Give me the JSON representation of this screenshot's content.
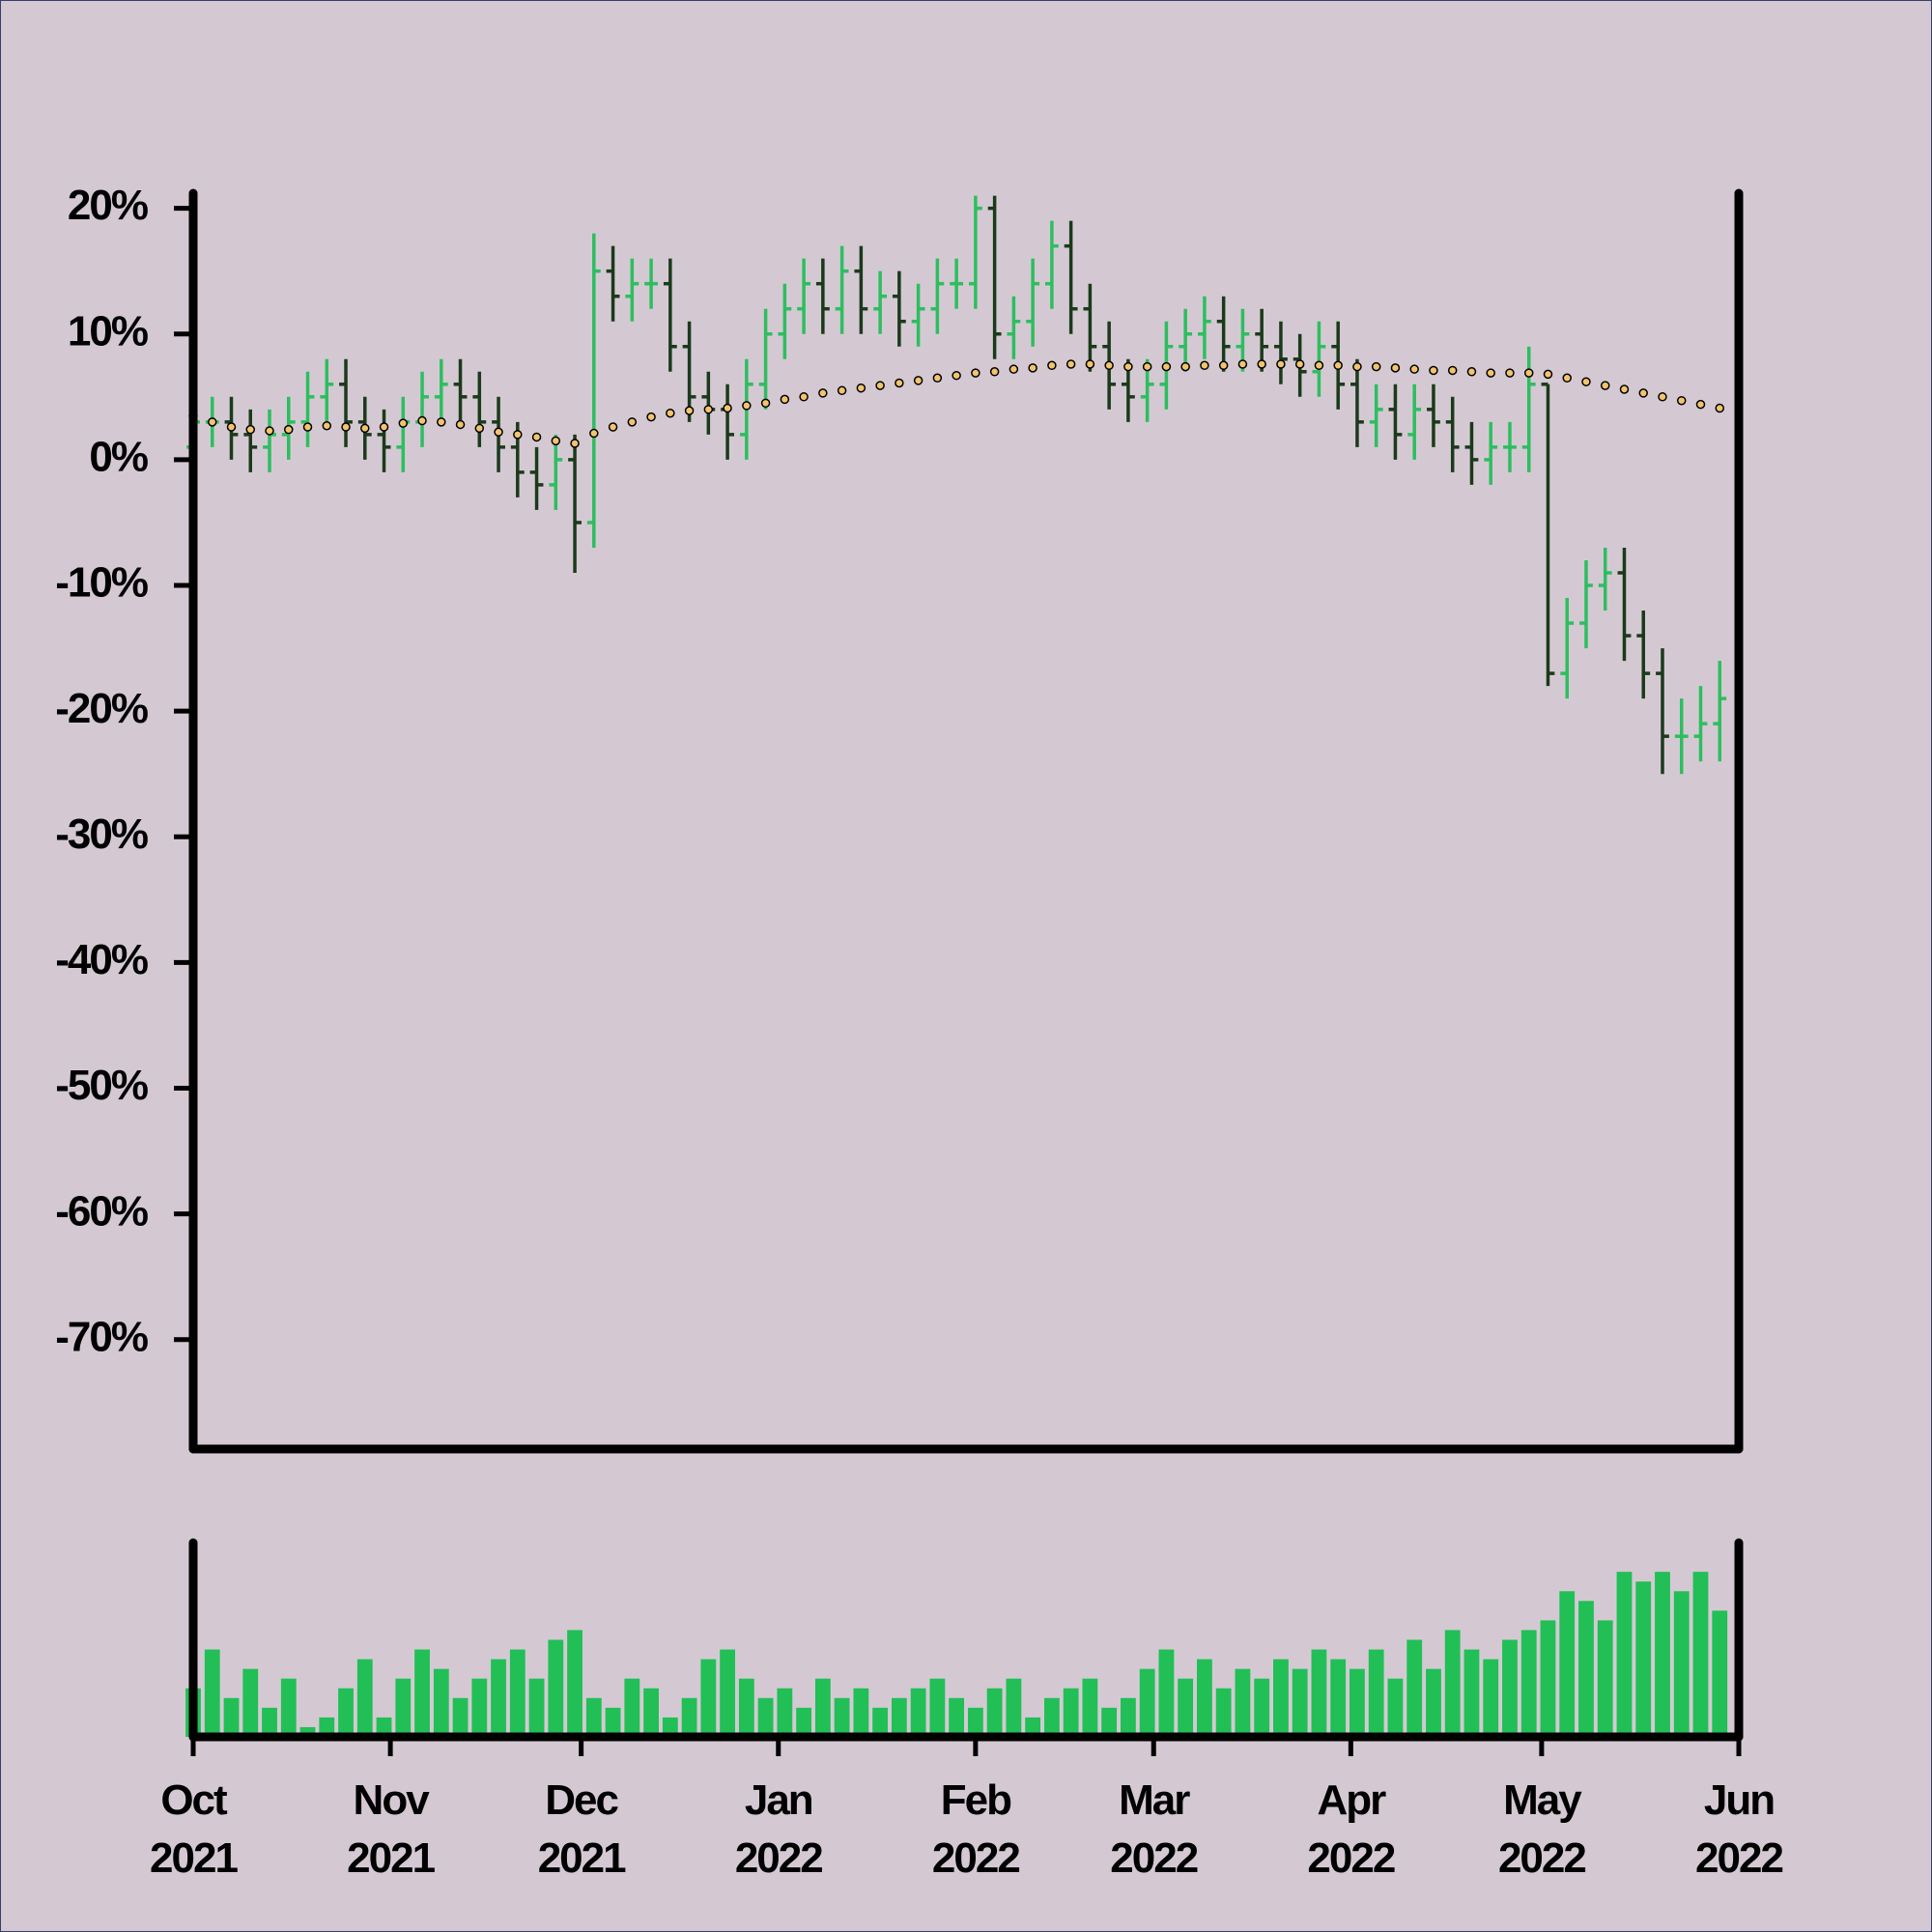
{
  "chart_data": {
    "type": "ohlc",
    "x": [
      0,
      3,
      6,
      9,
      12,
      15,
      18,
      21,
      24,
      27,
      30,
      33,
      36,
      39,
      42,
      45,
      48,
      51,
      54,
      57,
      60,
      63,
      66,
      69,
      72,
      75,
      78,
      81,
      84,
      87,
      90,
      93,
      96,
      99,
      102,
      105,
      108,
      111,
      114,
      117,
      120,
      123,
      126,
      129,
      132,
      135,
      138,
      141,
      144,
      147,
      150,
      153,
      156,
      159,
      162,
      165,
      168,
      171,
      174,
      177,
      180,
      183,
      186,
      189,
      192,
      195,
      198,
      201,
      204,
      207,
      210,
      213,
      216,
      219,
      222,
      225,
      228,
      231,
      234,
      237,
      240
    ],
    "open": [
      1,
      3,
      3,
      2,
      1,
      2,
      3,
      5,
      6,
      3,
      2,
      1,
      3,
      5,
      6,
      5,
      3,
      1,
      -1,
      -2,
      0,
      -5,
      15,
      13,
      14,
      14,
      9,
      5,
      4,
      2,
      6,
      10,
      12,
      14,
      12,
      15,
      12,
      13,
      11,
      12,
      14,
      14,
      20,
      10,
      11,
      14,
      17,
      12,
      9,
      6,
      5,
      6,
      9,
      10,
      11,
      9,
      10,
      9,
      8,
      7,
      9,
      6,
      3,
      4,
      2,
      4,
      3,
      1,
      0,
      1,
      1,
      6,
      -17,
      -13,
      -10,
      -9,
      -14,
      -17,
      -22,
      -22,
      -21
    ],
    "high": [
      5,
      5,
      5,
      4,
      4,
      5,
      7,
      8,
      8,
      5,
      4,
      5,
      7,
      8,
      8,
      7,
      5,
      3,
      1,
      2,
      2,
      18,
      17,
      16,
      16,
      16,
      11,
      7,
      6,
      8,
      12,
      14,
      16,
      16,
      17,
      17,
      15,
      15,
      14,
      16,
      16,
      21,
      21,
      13,
      16,
      19,
      19,
      14,
      11,
      8,
      8,
      11,
      12,
      13,
      13,
      12,
      12,
      11,
      10,
      11,
      11,
      8,
      6,
      6,
      6,
      6,
      5,
      3,
      3,
      3,
      9,
      6,
      -11,
      -8,
      -7,
      -7,
      -12,
      -15,
      -19,
      -18,
      -16
    ],
    "low": [
      -1,
      1,
      0,
      -1,
      -1,
      0,
      1,
      3,
      1,
      0,
      -1,
      -1,
      1,
      3,
      3,
      1,
      -1,
      -3,
      -4,
      -4,
      -9,
      -7,
      11,
      11,
      12,
      7,
      3,
      2,
      0,
      0,
      4,
      8,
      10,
      10,
      10,
      10,
      10,
      9,
      9,
      10,
      12,
      12,
      8,
      8,
      9,
      12,
      10,
      7,
      4,
      3,
      3,
      4,
      7,
      8,
      7,
      7,
      7,
      6,
      5,
      5,
      4,
      1,
      1,
      0,
      0,
      1,
      -1,
      -2,
      -2,
      -1,
      -1,
      -18,
      -19,
      -15,
      -12,
      -16,
      -19,
      -25,
      -25,
      -24,
      -24
    ],
    "close": [
      3,
      3,
      2,
      1,
      2,
      3,
      5,
      6,
      3,
      2,
      1,
      3,
      5,
      6,
      5,
      3,
      1,
      -1,
      -2,
      0,
      -5,
      15,
      13,
      14,
      14,
      9,
      5,
      4,
      2,
      6,
      10,
      12,
      14,
      12,
      15,
      12,
      13,
      11,
      12,
      14,
      14,
      20,
      10,
      11,
      14,
      17,
      12,
      9,
      6,
      5,
      6,
      9,
      10,
      11,
      9,
      10,
      9,
      8,
      7,
      9,
      6,
      3,
      4,
      2,
      4,
      3,
      1,
      0,
      1,
      1,
      6,
      -17,
      -13,
      -10,
      -9,
      -14,
      -17,
      -22,
      -22,
      -21,
      -19
    ],
    "colors": {
      "up": "#2dbe5f",
      "down": "#1b3a1b"
    },
    "moving_average": {
      "color": "#f2c46d",
      "values": [
        3.5,
        3,
        2.6,
        2.4,
        2.3,
        2.4,
        2.6,
        2.7,
        2.6,
        2.5,
        2.6,
        2.9,
        3.1,
        3,
        2.8,
        2.5,
        2.2,
        2,
        1.8,
        1.5,
        1.3,
        2.1,
        2.6,
        3,
        3.4,
        3.7,
        3.9,
        4,
        4.1,
        4.3,
        4.5,
        4.8,
        5,
        5.3,
        5.5,
        5.7,
        5.9,
        6.1,
        6.3,
        6.5,
        6.7,
        6.9,
        7,
        7.2,
        7.3,
        7.5,
        7.6,
        7.6,
        7.5,
        7.4,
        7.4,
        7.4,
        7.4,
        7.5,
        7.5,
        7.6,
        7.6,
        7.6,
        7.6,
        7.5,
        7.5,
        7.4,
        7.4,
        7.3,
        7.2,
        7.1,
        7.1,
        7,
        6.9,
        6.9,
        6.9,
        6.8,
        6.5,
        6.2,
        5.9,
        5.6,
        5.3,
        5,
        4.7,
        4.4,
        4.1
      ]
    },
    "volume": {
      "color": "#21bf55",
      "ylim": [
        0,
        100
      ],
      "values": [
        25,
        45,
        20,
        35,
        15,
        30,
        5,
        10,
        25,
        40,
        10,
        30,
        45,
        35,
        20,
        30,
        40,
        45,
        30,
        50,
        55,
        20,
        15,
        30,
        25,
        10,
        20,
        40,
        45,
        30,
        20,
        25,
        15,
        30,
        20,
        25,
        15,
        20,
        25,
        30,
        20,
        15,
        25,
        30,
        10,
        20,
        25,
        30,
        15,
        20,
        35,
        45,
        30,
        40,
        25,
        35,
        30,
        40,
        35,
        45,
        40,
        35,
        45,
        30,
        50,
        35,
        55,
        45,
        40,
        50,
        55,
        60,
        75,
        70,
        60,
        85,
        80,
        85,
        75,
        85,
        65
      ]
    },
    "xlim": [
      0,
      243
    ],
    "xticks": [
      {
        "value": 0,
        "label": "Oct 2021"
      },
      {
        "value": 31,
        "label": "Nov 2021"
      },
      {
        "value": 61,
        "label": "Dec 2021"
      },
      {
        "value": 92,
        "label": "Jan 2022"
      },
      {
        "value": 123,
        "label": "Feb 2022"
      },
      {
        "value": 151,
        "label": "Mar 2022"
      },
      {
        "value": 182,
        "label": "Apr 2022"
      },
      {
        "value": 212,
        "label": "May 2022"
      },
      {
        "value": 243,
        "label": "Jun 2022"
      }
    ],
    "ylim": [
      -78.7,
      21.2
    ],
    "yticks": [
      {
        "value": 20,
        "label": "20%"
      },
      {
        "value": 10,
        "label": "10%"
      },
      {
        "value": 0,
        "label": "0%"
      },
      {
        "value": -10,
        "label": "-10%"
      },
      {
        "value": -20,
        "label": "-20%"
      },
      {
        "value": -30,
        "label": "-30%"
      },
      {
        "value": -40,
        "label": "-40%"
      },
      {
        "value": -50,
        "label": "-50%"
      },
      {
        "value": -60,
        "label": "-60%"
      },
      {
        "value": -70,
        "label": "-70%"
      }
    ]
  }
}
